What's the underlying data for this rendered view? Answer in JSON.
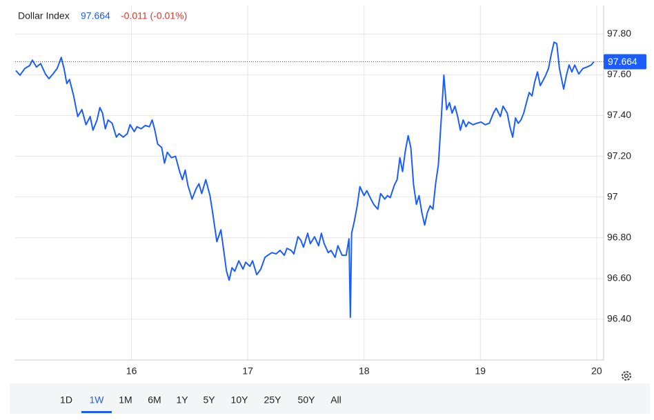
{
  "chart_data": {
    "type": "line",
    "title": "Dollar Index",
    "last_price": 97.664,
    "change": "-0.011 (-0.01%)",
    "x": [
      15.006,
      15.041,
      15.083,
      15.124,
      15.148,
      15.183,
      15.219,
      15.26,
      15.29,
      15.325,
      15.361,
      15.396,
      15.42,
      15.444,
      15.467,
      15.503,
      15.538,
      15.574,
      15.609,
      15.645,
      15.669,
      15.704,
      15.728,
      15.751,
      15.775,
      15.799,
      15.834,
      15.87,
      15.893,
      15.929,
      15.964,
      15.988,
      16.024,
      16.047,
      16.083,
      16.118,
      16.154,
      16.178,
      16.201,
      16.225,
      16.26,
      16.284,
      16.308,
      16.343,
      16.379,
      16.414,
      16.438,
      16.462,
      16.485,
      16.521,
      16.556,
      16.58,
      16.604,
      16.639,
      16.675,
      16.698,
      16.734,
      16.769,
      16.793,
      16.817,
      16.84,
      16.864,
      16.888,
      16.923,
      16.959,
      16.982,
      17.018,
      17.041,
      17.077,
      17.112,
      17.148,
      17.172,
      17.207,
      17.243,
      17.278,
      17.314,
      17.337,
      17.373,
      17.396,
      17.432,
      17.456,
      17.479,
      17.515,
      17.538,
      17.574,
      17.609,
      17.633,
      17.657,
      17.692,
      17.716,
      17.751,
      17.775,
      17.811,
      17.846,
      17.87,
      17.882,
      17.893,
      17.917,
      17.941,
      17.964,
      18,
      18.024,
      18.059,
      18.083,
      18.118,
      18.142,
      18.178,
      18.201,
      18.225,
      18.26,
      18.284,
      18.308,
      18.331,
      18.355,
      18.379,
      18.402,
      18.426,
      18.45,
      18.473,
      18.497,
      18.521,
      18.544,
      18.568,
      18.592,
      18.615,
      18.639,
      18.663,
      18.686,
      18.71,
      18.734,
      18.757,
      18.781,
      18.805,
      18.828,
      18.852,
      18.876,
      18.899,
      18.935,
      18.97,
      19.006,
      19.041,
      19.077,
      19.112,
      19.136,
      19.172,
      19.195,
      19.231,
      19.254,
      19.278,
      19.302,
      19.325,
      19.349,
      19.373,
      19.396,
      19.42,
      19.444,
      19.467,
      19.491,
      19.515,
      19.538,
      19.562,
      19.586,
      19.609,
      19.633,
      19.657,
      19.68,
      19.716,
      19.74,
      19.763,
      19.787,
      19.811,
      19.846,
      19.882,
      19.917,
      19.953,
      19.976
    ],
    "series": [
      {
        "name": "Dollar Index",
        "color": "#1a5cff",
        "values": [
          97.621,
          97.598,
          97.631,
          97.645,
          97.672,
          97.638,
          97.655,
          97.604,
          97.581,
          97.604,
          97.631,
          97.685,
          97.631,
          97.557,
          97.577,
          97.496,
          97.395,
          97.429,
          97.355,
          97.395,
          97.328,
          97.378,
          97.439,
          97.412,
          97.335,
          97.378,
          97.362,
          97.294,
          97.311,
          97.294,
          97.311,
          97.355,
          97.321,
          97.345,
          97.335,
          97.351,
          97.345,
          97.378,
          97.328,
          97.26,
          97.243,
          97.166,
          97.22,
          97.193,
          97.2,
          97.125,
          97.085,
          97.132,
          97.058,
          96.99,
          97.041,
          97.065,
          97.017,
          97.085,
          97.007,
          96.923,
          96.781,
          96.839,
          96.738,
          96.636,
          96.592,
          96.653,
          96.636,
          96.687,
          96.646,
          96.68,
          96.66,
          96.687,
          96.619,
          96.646,
          96.704,
          96.714,
          96.727,
          96.721,
          96.738,
          96.714,
          96.748,
          96.738,
          96.721,
          96.805,
          96.788,
          96.754,
          96.822,
          96.771,
          96.805,
          96.761,
          96.822,
          96.771,
          96.727,
          96.738,
          96.704,
          96.761,
          96.714,
          96.714,
          96.795,
          96.41,
          96.822,
          96.883,
          96.957,
          97.051,
          97.007,
          97.031,
          96.99,
          96.964,
          96.94,
          97.017,
          96.99,
          97.007,
          96.997,
          97.058,
          97.085,
          97.193,
          97.125,
          97.227,
          97.301,
          97.243,
          97.058,
          96.964,
          97.007,
          96.923,
          96.862,
          96.923,
          96.957,
          96.94,
          97.065,
          97.159,
          97.378,
          97.598,
          97.429,
          97.463,
          97.412,
          97.446,
          97.395,
          97.328,
          97.378,
          97.345,
          97.368,
          97.355,
          97.362,
          97.368,
          97.355,
          97.362,
          97.412,
          97.436,
          97.395,
          97.446,
          97.412,
          97.345,
          97.294,
          97.388,
          97.362,
          97.378,
          97.412,
          97.463,
          97.513,
          97.496,
          97.564,
          97.614,
          97.547,
          97.571,
          97.598,
          97.631,
          97.699,
          97.76,
          97.753,
          97.631,
          97.53,
          97.598,
          97.648,
          97.614,
          97.648,
          97.604,
          97.631,
          97.638,
          97.648,
          97.664
        ]
      }
    ],
    "xlim": [
      15.0,
      20.06
    ],
    "xticks": [
      16,
      17,
      18,
      19,
      20
    ],
    "ylim": [
      96.2,
      97.94
    ],
    "yticks": [
      {
        "value": 96.4,
        "label": "96.40"
      },
      {
        "value": 96.6,
        "label": "96.60"
      },
      {
        "value": 96.8,
        "label": "96.80"
      },
      97,
      {
        "value": 97.2,
        "label": "97.20"
      },
      {
        "value": 97.4,
        "label": "97.40"
      },
      {
        "value": 97.6,
        "label": "97.60"
      },
      {
        "value": 97.8,
        "label": "97.80"
      }
    ],
    "grid": true
  },
  "range_buttons": [
    "1D",
    "1W",
    "1M",
    "6M",
    "1Y",
    "5Y",
    "10Y",
    "25Y",
    "50Y",
    "All"
  ],
  "selected_range": "1W"
}
